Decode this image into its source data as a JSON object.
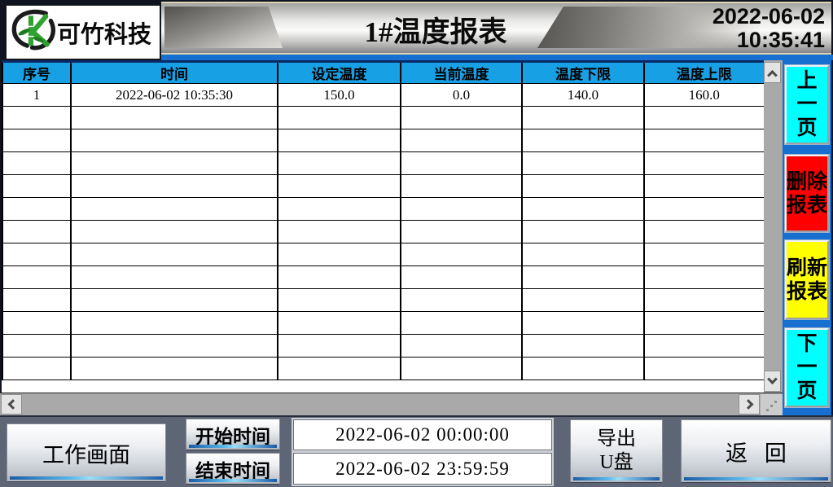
{
  "header": {
    "logo_text": "可竹科技",
    "title": "1#温度报表",
    "date": "2022-06-02",
    "time": "10:35:41"
  },
  "table": {
    "columns": [
      "序号",
      "时间",
      "设定温度",
      "当前温度",
      "温度下限",
      "温度上限"
    ],
    "rows": [
      [
        "1",
        "2022-06-02 10:35:30",
        "150.0",
        "0.0",
        "140.0",
        "160.0"
      ]
    ],
    "empty_row_count": 12
  },
  "side_panel": {
    "prev": {
      "chars": [
        "上",
        "一",
        "页"
      ],
      "bg": "#00FFFF"
    },
    "delete": {
      "line1": "删除",
      "line2": "报表",
      "bg": "#FF0000"
    },
    "refresh": {
      "line1": "刷新",
      "line2": "报表",
      "bg": "#FFFF00"
    },
    "next": {
      "chars": [
        "下",
        "一",
        "页"
      ],
      "bg": "#00FFFF"
    }
  },
  "bottom_bar": {
    "work_screen": "工作画面",
    "start_label": "开始时间",
    "end_label": "结束时间",
    "start_value": "2022-06-02 00:00:00",
    "end_value": "2022-06-02 23:59:59",
    "export_line1": "导出",
    "export_line2": "U盘",
    "back": "返 回"
  },
  "icons": {
    "logo": "bamboo-k-logo",
    "scroll_up": "chevron-up",
    "scroll_down": "chevron-down",
    "scroll_left": "chevron-left",
    "scroll_right": "chevron-right",
    "corner": "resize-grip-dots"
  },
  "colors": {
    "table_header_blue": "#18A0E4",
    "side_panel_blue": "#1770D0",
    "button_cyan": "#00FFFF",
    "button_red": "#FF0000",
    "button_yellow": "#FFFF00",
    "scroll_track_gray": "#A9A9A9",
    "bottom_bar_gray": "#5E6574"
  }
}
